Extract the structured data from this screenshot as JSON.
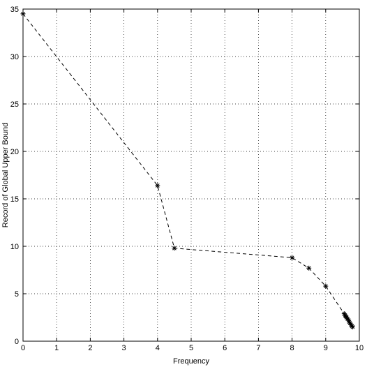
{
  "chart_data": {
    "type": "line",
    "title": "",
    "xlabel": "Frequency",
    "ylabel": "Record of Global Upper Bound",
    "xlim": [
      0,
      10
    ],
    "ylim": [
      0,
      35
    ],
    "xticks": [
      0,
      1,
      2,
      3,
      4,
      5,
      6,
      7,
      8,
      9,
      10
    ],
    "yticks": [
      0,
      5,
      10,
      15,
      20,
      25,
      30,
      35
    ],
    "grid": true,
    "line_style": "dashed",
    "marker": "asterisk",
    "line_color": "#000000",
    "series": [
      {
        "x": [
          0,
          4.0,
          4.5,
          8.0,
          8.5,
          9.0,
          9.55,
          9.58,
          9.6,
          9.62,
          9.65,
          9.68,
          9.7,
          9.72,
          9.75,
          9.78,
          9.8
        ],
        "y": [
          34.5,
          16.4,
          9.8,
          8.8,
          7.7,
          5.8,
          2.9,
          2.7,
          2.6,
          2.5,
          2.35,
          2.2,
          2.05,
          1.9,
          1.75,
          1.6,
          1.5
        ]
      }
    ]
  }
}
